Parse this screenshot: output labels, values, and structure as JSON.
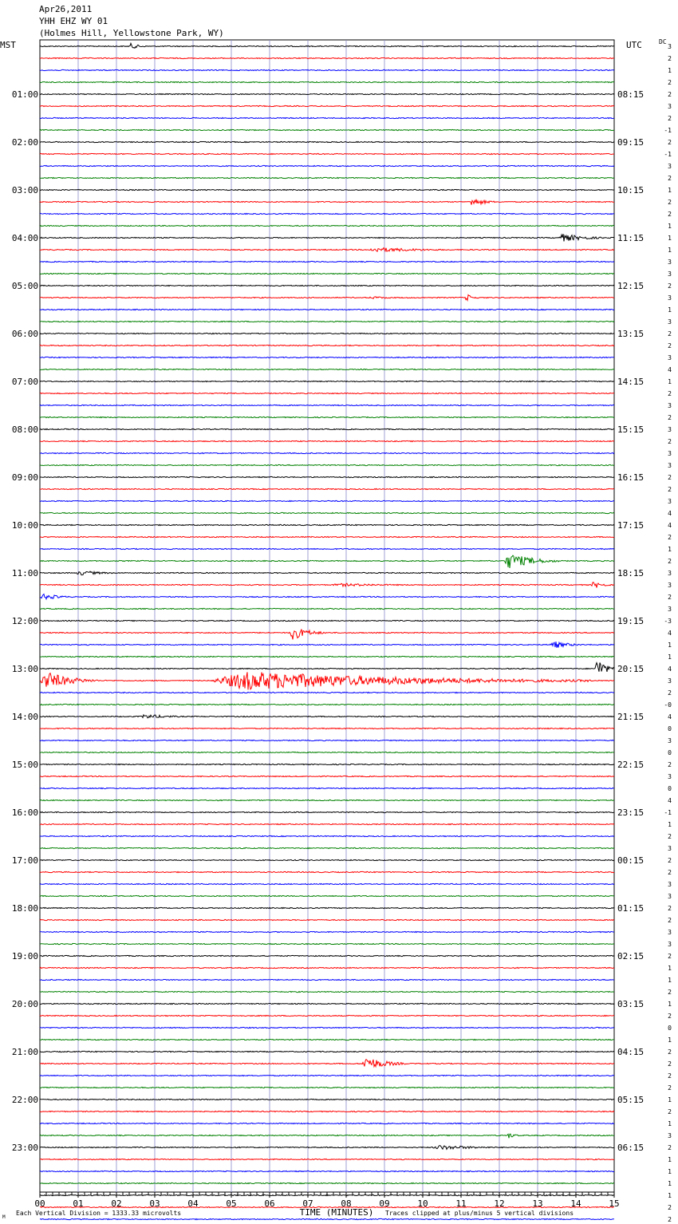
{
  "header": {
    "date": "Apr26,2011",
    "station": "YHH EHZ WY 01",
    "location": "(Holmes Hill, Yellowstone Park, WY)"
  },
  "left_zone_label": "MST",
  "right_zone_label": "UTC",
  "dc_label": "DC",
  "footer": {
    "scale_note": "Each Vertical Division = 1333.33 microvolts",
    "xlabel": "TIME (MINUTES)",
    "clip_note": "Traces clipped at plus/minus 5 vertical divisions",
    "mark": "M"
  },
  "colors": {
    "trace_cycle": [
      "#000000",
      "#ff0000",
      "#0000ff",
      "#008000"
    ],
    "grid": "#8888cc"
  },
  "chart_data": {
    "type": "helicorder",
    "rows_per_hour": 4,
    "minutes_per_row": 15,
    "xlim": [
      0,
      15
    ],
    "x_ticks": [
      "00",
      "01",
      "02",
      "03",
      "04",
      "05",
      "06",
      "07",
      "08",
      "09",
      "10",
      "11",
      "12",
      "13",
      "14",
      "15"
    ],
    "left_hours": [
      "01:00",
      "02:00",
      "03:00",
      "04:00",
      "05:00",
      "06:00",
      "07:00",
      "08:00",
      "09:00",
      "10:00",
      "11:00",
      "12:00",
      "13:00",
      "14:00",
      "15:00",
      "16:00",
      "17:00",
      "18:00",
      "19:00",
      "20:00",
      "21:00",
      "22:00",
      "23:00"
    ],
    "right_hours": [
      "08:15",
      "09:15",
      "10:15",
      "11:15",
      "12:15",
      "13:15",
      "14:15",
      "15:15",
      "16:15",
      "17:15",
      "18:15",
      "19:15",
      "20:15",
      "21:15",
      "22:15",
      "23:15",
      "00:15",
      "01:15",
      "02:15",
      "03:15",
      "04:15",
      "05:15",
      "06:15"
    ],
    "dc_values": [
      "3",
      "2",
      "1",
      "2",
      "2",
      "3",
      "2",
      "-1",
      "2",
      "-1",
      "3",
      "2",
      "1",
      "2",
      "2",
      "1",
      "1",
      "1",
      "3",
      "3",
      "2",
      "3",
      "1",
      "3",
      "2",
      "2",
      "3",
      "4",
      "1",
      "2",
      "3",
      "2",
      "3",
      "2",
      "3",
      "3",
      "2",
      "2",
      "3",
      "4",
      "4",
      "2",
      "1",
      "2",
      "3",
      "3",
      "2",
      "3",
      "-3",
      "4",
      "1",
      "1",
      "4",
      "3",
      "2",
      "-0",
      "4",
      "0",
      "3",
      "0",
      "2",
      "3",
      "0",
      "4",
      "-1",
      "1",
      "2",
      "3",
      "2",
      "2",
      "3",
      "3",
      "2",
      "2",
      "3",
      "3",
      "2",
      "1",
      "1",
      "2",
      "1",
      "2",
      "0",
      "1",
      "2",
      "2",
      "2",
      "2",
      "1",
      "2",
      "1",
      "3",
      "2",
      "1",
      "1",
      "1",
      "1",
      "2",
      "2",
      "2"
    ],
    "events": [
      {
        "row": 0,
        "start_min": 2.3,
        "dur_min": 0.6,
        "amp": 4
      },
      {
        "row": 13,
        "start_min": 11.2,
        "dur_min": 0.8,
        "amp": 6
      },
      {
        "row": 16,
        "start_min": 13.5,
        "dur_min": 1.5,
        "amp": 5
      },
      {
        "row": 17,
        "start_min": 8.5,
        "dur_min": 3.0,
        "amp": 3
      },
      {
        "row": 21,
        "start_min": 8.5,
        "dur_min": 1.8,
        "amp": 1.5
      },
      {
        "row": 21,
        "start_min": 11.1,
        "dur_min": 0.4,
        "amp": 5
      },
      {
        "row": 43,
        "start_min": 12.1,
        "dur_min": 1.5,
        "amp": 10
      },
      {
        "row": 44,
        "start_min": 0.9,
        "dur_min": 1.5,
        "amp": 3
      },
      {
        "row": 45,
        "start_min": 7.5,
        "dur_min": 3.5,
        "amp": 2
      },
      {
        "row": 45,
        "start_min": 14.4,
        "dur_min": 0.6,
        "amp": 5
      },
      {
        "row": 46,
        "start_min": 0.0,
        "dur_min": 1.0,
        "amp": 4
      },
      {
        "row": 49,
        "start_min": 6.5,
        "dur_min": 1.0,
        "amp": 9
      },
      {
        "row": 50,
        "start_min": 13.3,
        "dur_min": 1.0,
        "amp": 5
      },
      {
        "row": 52,
        "start_min": 14.5,
        "dur_min": 0.5,
        "amp": 15
      },
      {
        "row": 53,
        "start_min": 0.0,
        "dur_min": 1.5,
        "amp": 12
      },
      {
        "row": 53,
        "start_min": 4.4,
        "dur_min": 10.0,
        "amp": 12
      },
      {
        "row": 56,
        "start_min": 2.6,
        "dur_min": 1.5,
        "amp": 3
      },
      {
        "row": 85,
        "start_min": 8.4,
        "dur_min": 1.2,
        "amp": 9
      },
      {
        "row": 91,
        "start_min": 12.2,
        "dur_min": 0.4,
        "amp": 4
      },
      {
        "row": 92,
        "start_min": 10.2,
        "dur_min": 2.5,
        "amp": 3
      }
    ]
  }
}
